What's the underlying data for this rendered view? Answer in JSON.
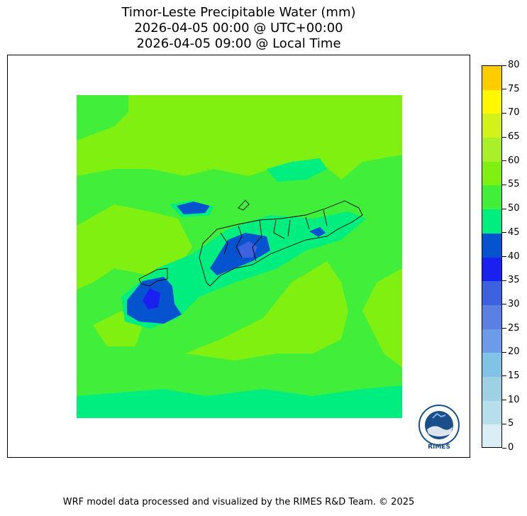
{
  "title_lines": [
    "Timor-Leste Precipitable Water (mm)",
    "2026-04-05 00:00 @ UTC+00:00",
    "2026-04-05 09:00 @ Local Time"
  ],
  "colorbar": {
    "ticks": [
      "0",
      "5",
      "10",
      "15",
      "20",
      "25",
      "30",
      "35",
      "40",
      "45",
      "50",
      "55",
      "60",
      "65",
      "70",
      "75",
      "80"
    ],
    "colors": [
      "#dbeef6",
      "#b7dfeb",
      "#9dd1e3",
      "#80c3e6",
      "#6c9ce9",
      "#5a80e4",
      "#3d62e0",
      "#1a20f0",
      "#0653d0",
      "#00ee80",
      "#41ee3a",
      "#80f010",
      "#a9f02a",
      "#d2f218",
      "#fff800",
      "#ffcc00"
    ]
  },
  "map": {
    "description_none": "",
    "logo_text": "RIMES",
    "logo_ring_text": "Regional Integrated Multi-Hazard Early Warning System"
  },
  "footer": "WRF model data processed and visualized by the RIMES R&D Team. © 2025"
}
